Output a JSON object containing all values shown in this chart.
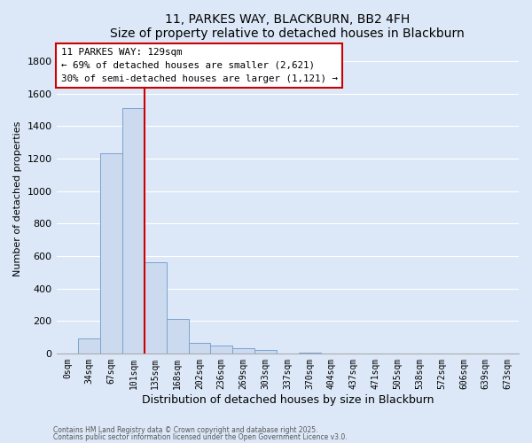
{
  "title": "11, PARKES WAY, BLACKBURN, BB2 4FH",
  "subtitle": "Size of property relative to detached houses in Blackburn",
  "xlabel": "Distribution of detached houses by size in Blackburn",
  "ylabel": "Number of detached properties",
  "bar_labels": [
    "0sqm",
    "34sqm",
    "67sqm",
    "101sqm",
    "135sqm",
    "168sqm",
    "202sqm",
    "236sqm",
    "269sqm",
    "303sqm",
    "337sqm",
    "370sqm",
    "404sqm",
    "437sqm",
    "471sqm",
    "505sqm",
    "538sqm",
    "572sqm",
    "606sqm",
    "639sqm",
    "673sqm"
  ],
  "bar_values": [
    0,
    93,
    1232,
    1510,
    560,
    210,
    65,
    48,
    30,
    22,
    0,
    5,
    0,
    0,
    0,
    0,
    0,
    0,
    0,
    0,
    0
  ],
  "bar_color": "#ccdaf0",
  "bar_edge_color": "#7ba3cc",
  "vline_x": 3.5,
  "vline_color": "#cc0000",
  "annotation_title": "11 PARKES WAY: 129sqm",
  "annotation_line1": "← 69% of detached houses are smaller (2,621)",
  "annotation_line2": "30% of semi-detached houses are larger (1,121) →",
  "annotation_box_facecolor": "#ffffff",
  "annotation_box_edgecolor": "#cc0000",
  "ylim": [
    0,
    1900
  ],
  "yticks": [
    0,
    200,
    400,
    600,
    800,
    1000,
    1200,
    1400,
    1600,
    1800
  ],
  "footer1": "Contains HM Land Registry data © Crown copyright and database right 2025.",
  "footer2": "Contains public sector information licensed under the Open Government Licence v3.0.",
  "bg_color": "#dce8f8",
  "plot_bg_color": "#dce8f8",
  "grid_color": "#ffffff",
  "title_fontsize": 10,
  "axis_label_fontsize": 8,
  "tick_fontsize": 7,
  "xlabel_fontsize": 9
}
